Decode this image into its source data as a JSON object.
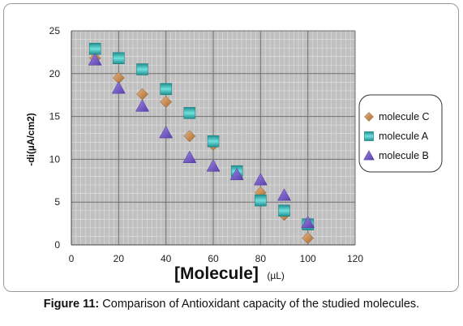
{
  "chart_data": {
    "type": "scatter",
    "title": "",
    "xlabel_main": "[Molecule]",
    "xlabel_unit": "(µL)",
    "ylabel": "-di(µA/cm2)",
    "xlim": [
      0,
      120
    ],
    "ylim": [
      0,
      25
    ],
    "x_ticks": [
      0,
      20,
      40,
      60,
      80,
      100,
      120
    ],
    "y_ticks": [
      0,
      5,
      10,
      15,
      20,
      25
    ],
    "grid": true,
    "plot_background": "#c0c0c0",
    "legend_position": "right",
    "series": [
      {
        "name": "molecule C",
        "marker": "diamond",
        "color": "#c8894a",
        "x": [
          10,
          20,
          30,
          40,
          50,
          60,
          70,
          80,
          90,
          100
        ],
        "y": [
          21.8,
          19.5,
          17.6,
          16.7,
          12.7,
          11.7,
          8.3,
          6.1,
          3.5,
          0.8
        ]
      },
      {
        "name": "molecule A",
        "marker": "square",
        "color": "#3bb8b8",
        "x": [
          10,
          20,
          30,
          40,
          50,
          60,
          70,
          80,
          90,
          100
        ],
        "y": [
          22.9,
          21.8,
          20.5,
          18.2,
          15.4,
          12.1,
          8.6,
          5.2,
          4.0,
          2.4
        ]
      },
      {
        "name": "molecule B",
        "marker": "triangle",
        "color": "#7b5fc7",
        "x": [
          10,
          20,
          30,
          40,
          50,
          60,
          70,
          80,
          90,
          100
        ],
        "y": [
          21.6,
          18.3,
          16.2,
          13.1,
          10.2,
          9.2,
          8.2,
          7.6,
          5.8,
          2.6
        ]
      }
    ]
  },
  "caption": {
    "label": "Figure 11:",
    "text": "Comparison of Antioxidant capacity of the studied molecules."
  }
}
